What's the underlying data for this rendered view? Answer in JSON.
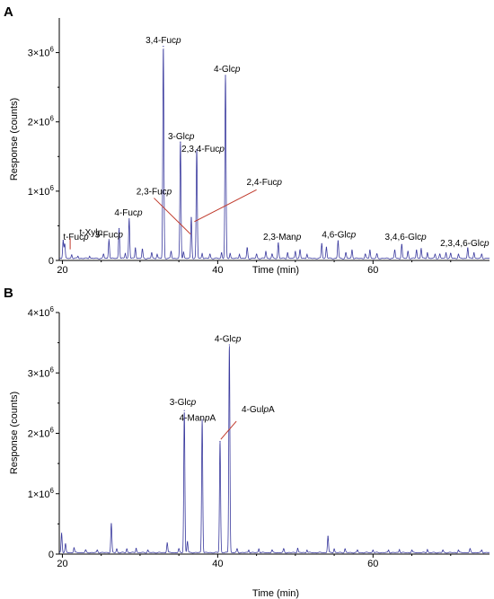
{
  "chart_data": [
    {
      "type": "line",
      "panel": "A",
      "xlabel": "Time (min)",
      "ylabel": "Response (counts)",
      "xlim": [
        19.6,
        75
      ],
      "ylim": [
        0,
        3500000
      ],
      "x_ticks": [
        20,
        40,
        60
      ],
      "x_tick_labels": [
        "20",
        "40",
        "60"
      ],
      "y_ticks": [
        0,
        1000000,
        2000000,
        3000000
      ],
      "y_tick_labels": [
        {
          "base": "0",
          "exp": ""
        },
        {
          "base": "1×10",
          "exp": "6"
        },
        {
          "base": "2×10",
          "exp": "6"
        },
        {
          "base": "3×10",
          "exp": "6"
        }
      ],
      "baseline": 30000,
      "peaks": [
        [
          20.1,
          260000
        ],
        [
          20.3,
          200000
        ],
        [
          21.2,
          50000
        ],
        [
          22.0,
          30000
        ],
        [
          23.5,
          30000
        ],
        [
          25.3,
          60000
        ],
        [
          26.0,
          270000
        ],
        [
          27.3,
          430000
        ],
        [
          28.1,
          70000
        ],
        [
          28.6,
          570000
        ],
        [
          29.4,
          150000
        ],
        [
          30.3,
          130000
        ],
        [
          31.5,
          80000
        ],
        [
          32.2,
          60000
        ],
        [
          33.0,
          3060000
        ],
        [
          34.0,
          100000
        ],
        [
          35.2,
          1680000
        ],
        [
          35.6,
          90000
        ],
        [
          36.6,
          590000
        ],
        [
          37.3,
          1570000
        ],
        [
          38.0,
          70000
        ],
        [
          39.0,
          60000
        ],
        [
          40.5,
          80000
        ],
        [
          41.0,
          2640000
        ],
        [
          41.6,
          70000
        ],
        [
          42.8,
          60000
        ],
        [
          43.8,
          150000
        ],
        [
          45.0,
          60000
        ],
        [
          46.2,
          100000
        ],
        [
          47.0,
          60000
        ],
        [
          47.8,
          220000
        ],
        [
          49.0,
          80000
        ],
        [
          50.0,
          100000
        ],
        [
          50.6,
          120000
        ],
        [
          51.5,
          60000
        ],
        [
          53.4,
          210000
        ],
        [
          54.0,
          160000
        ],
        [
          55.5,
          250000
        ],
        [
          56.5,
          80000
        ],
        [
          57.3,
          120000
        ],
        [
          59.0,
          60000
        ],
        [
          59.6,
          120000
        ],
        [
          60.5,
          60000
        ],
        [
          62.8,
          120000
        ],
        [
          63.7,
          200000
        ],
        [
          64.5,
          100000
        ],
        [
          65.6,
          120000
        ],
        [
          66.2,
          140000
        ],
        [
          67.0,
          80000
        ],
        [
          68.0,
          60000
        ],
        [
          68.6,
          60000
        ],
        [
          69.4,
          80000
        ],
        [
          70.0,
          70000
        ],
        [
          71.0,
          60000
        ],
        [
          72.2,
          150000
        ],
        [
          73.0,
          80000
        ],
        [
          74.0,
          60000
        ]
      ],
      "annotations": [
        {
          "text": "t-Fuc",
          "italic": "p",
          "x": 20.1,
          "y": 300000,
          "anchor": "start",
          "leader": false
        },
        {
          "text": "t-Xyl",
          "italic": "p",
          "x": 22.2,
          "y": 360000,
          "anchor": "start",
          "leader": true,
          "leader_to": [
            21.0,
            160000
          ]
        },
        {
          "text": "3-Fuc",
          "italic": "p",
          "x": 26.0,
          "y": 330000,
          "anchor": "middle",
          "leader": false
        },
        {
          "text": "4-Fuc",
          "italic": "p",
          "x": 28.5,
          "y": 650000,
          "anchor": "middle",
          "leader": false
        },
        {
          "text": "3,4-Fuc",
          "italic": "p",
          "x": 33.0,
          "y": 3140000,
          "anchor": "middle",
          "leader": false
        },
        {
          "text": "3-Glc",
          "italic": "p",
          "x": 35.3,
          "y": 1750000,
          "anchor": "middle",
          "leader": false
        },
        {
          "text": "2,3,4-Fuc",
          "italic": "p",
          "x": 38.1,
          "y": 1570000,
          "anchor": "middle",
          "leader": false
        },
        {
          "text": "4-Glc",
          "italic": "p",
          "x": 41.2,
          "y": 2720000,
          "anchor": "middle",
          "leader": false
        },
        {
          "text": "2,3-Fuc",
          "italic": "p",
          "x": 31.8,
          "y": 950000,
          "anchor": "middle",
          "leader": true,
          "leader_from": [
            31.8,
            900000
          ],
          "leader_to": [
            36.5,
            380000
          ]
        },
        {
          "text": "2,4-Fuc",
          "italic": "p",
          "x": 46.0,
          "y": 1090000,
          "anchor": "middle",
          "leader": true,
          "leader_from": [
            45.0,
            1020000
          ],
          "leader_to": [
            37.0,
            560000
          ]
        },
        {
          "text": "2,3-Man",
          "italic": "p",
          "x": 48.3,
          "y": 300000,
          "anchor": "middle",
          "leader": false
        },
        {
          "text": "4,6-Glc",
          "italic": "p",
          "x": 55.6,
          "y": 330000,
          "anchor": "middle",
          "leader": false
        },
        {
          "text": "3,4,6-Glc",
          "italic": "p",
          "x": 64.2,
          "y": 300000,
          "anchor": "middle",
          "leader": false
        },
        {
          "text": "2,3,4,6-Glc",
          "italic": "p",
          "x": 71.8,
          "y": 210000,
          "anchor": "middle",
          "leader": false
        }
      ]
    },
    {
      "type": "line",
      "panel": "B",
      "xlabel": "Time (min)",
      "ylabel": "Response (counts)",
      "xlim": [
        19.6,
        75
      ],
      "ylim": [
        0,
        4000000
      ],
      "x_ticks": [
        20,
        40,
        60
      ],
      "x_tick_labels": [
        "20",
        "40",
        "60"
      ],
      "y_ticks": [
        0,
        1000000,
        2000000,
        3000000,
        4000000
      ],
      "y_tick_labels": [
        {
          "base": "0",
          "exp": ""
        },
        {
          "base": "1×10",
          "exp": "6"
        },
        {
          "base": "2×10",
          "exp": "6"
        },
        {
          "base": "3×10",
          "exp": "6"
        },
        {
          "base": "4×10",
          "exp": "6"
        }
      ],
      "baseline": 25000,
      "peaks": [
        [
          19.9,
          320000
        ],
        [
          20.4,
          140000
        ],
        [
          21.5,
          80000
        ],
        [
          23.0,
          40000
        ],
        [
          24.5,
          40000
        ],
        [
          26.3,
          480000
        ],
        [
          27.0,
          60000
        ],
        [
          28.3,
          60000
        ],
        [
          29.5,
          70000
        ],
        [
          31.0,
          40000
        ],
        [
          33.5,
          160000
        ],
        [
          35.0,
          60000
        ],
        [
          35.7,
          2350000
        ],
        [
          36.1,
          180000
        ],
        [
          38.0,
          2200000
        ],
        [
          40.3,
          1840000
        ],
        [
          41.5,
          3440000
        ],
        [
          42.5,
          60000
        ],
        [
          44.0,
          40000
        ],
        [
          45.3,
          60000
        ],
        [
          47.0,
          40000
        ],
        [
          48.5,
          60000
        ],
        [
          50.3,
          70000
        ],
        [
          51.5,
          40000
        ],
        [
          54.2,
          270000
        ],
        [
          55.0,
          60000
        ],
        [
          56.4,
          60000
        ],
        [
          58.0,
          40000
        ],
        [
          60.0,
          40000
        ],
        [
          62.0,
          40000
        ],
        [
          63.4,
          50000
        ],
        [
          65.0,
          40000
        ],
        [
          67.0,
          50000
        ],
        [
          69.0,
          40000
        ],
        [
          71.0,
          40000
        ],
        [
          72.5,
          60000
        ],
        [
          74.0,
          40000
        ]
      ],
      "annotations": [
        {
          "text": "3-Glc",
          "italic": "p",
          "x": 35.5,
          "y": 2470000,
          "anchor": "middle",
          "leader": false
        },
        {
          "text": "4-Man",
          "italic": "p",
          "suffix": "A",
          "x": 37.4,
          "y": 2210000,
          "anchor": "middle",
          "leader": false
        },
        {
          "text": "4-Glc",
          "italic": "p",
          "x": 41.3,
          "y": 3520000,
          "anchor": "middle",
          "leader": false
        },
        {
          "text": "4-Gul",
          "italic": "p",
          "suffix": "A",
          "x": 45.2,
          "y": 2350000,
          "anchor": "middle",
          "leader": true,
          "leader_from": [
            42.4,
            2200000
          ],
          "leader_to": [
            40.4,
            1900000
          ]
        }
      ]
    }
  ]
}
